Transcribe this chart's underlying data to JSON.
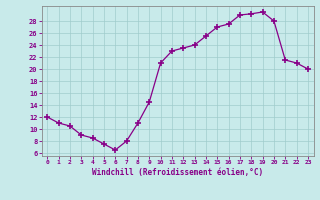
{
  "x": [
    0,
    1,
    2,
    3,
    4,
    5,
    6,
    7,
    8,
    9,
    10,
    11,
    12,
    13,
    14,
    15,
    16,
    17,
    18,
    19,
    20,
    21,
    22,
    23
  ],
  "y": [
    12,
    11,
    10.5,
    9,
    8.5,
    7.5,
    6.5,
    8,
    11,
    14.5,
    21,
    23,
    23.5,
    24,
    25.5,
    27,
    27.5,
    29,
    29.2,
    29.5,
    28,
    21.5,
    21,
    20
  ],
  "line_color": "#880088",
  "marker": "+",
  "marker_size": 4,
  "marker_lw": 1.2,
  "bg_color": "#c8eaea",
  "grid_color": "#a0cccc",
  "xlabel": "Windchill (Refroidissement éolien,°C)",
  "xlabel_color": "#880088",
  "tick_color": "#880088",
  "yticks": [
    6,
    8,
    10,
    12,
    14,
    16,
    18,
    20,
    22,
    24,
    26,
    28
  ],
  "ylim": [
    5.5,
    30.5
  ],
  "xlim": [
    -0.5,
    23.5
  ],
  "xtick_labels": [
    "0",
    "1",
    "2",
    "3",
    "4",
    "5",
    "6",
    "7",
    "8",
    "9",
    "10",
    "11",
    "12",
    "13",
    "14",
    "15",
    "16",
    "17",
    "18",
    "19",
    "20",
    "21",
    "22",
    "23"
  ]
}
